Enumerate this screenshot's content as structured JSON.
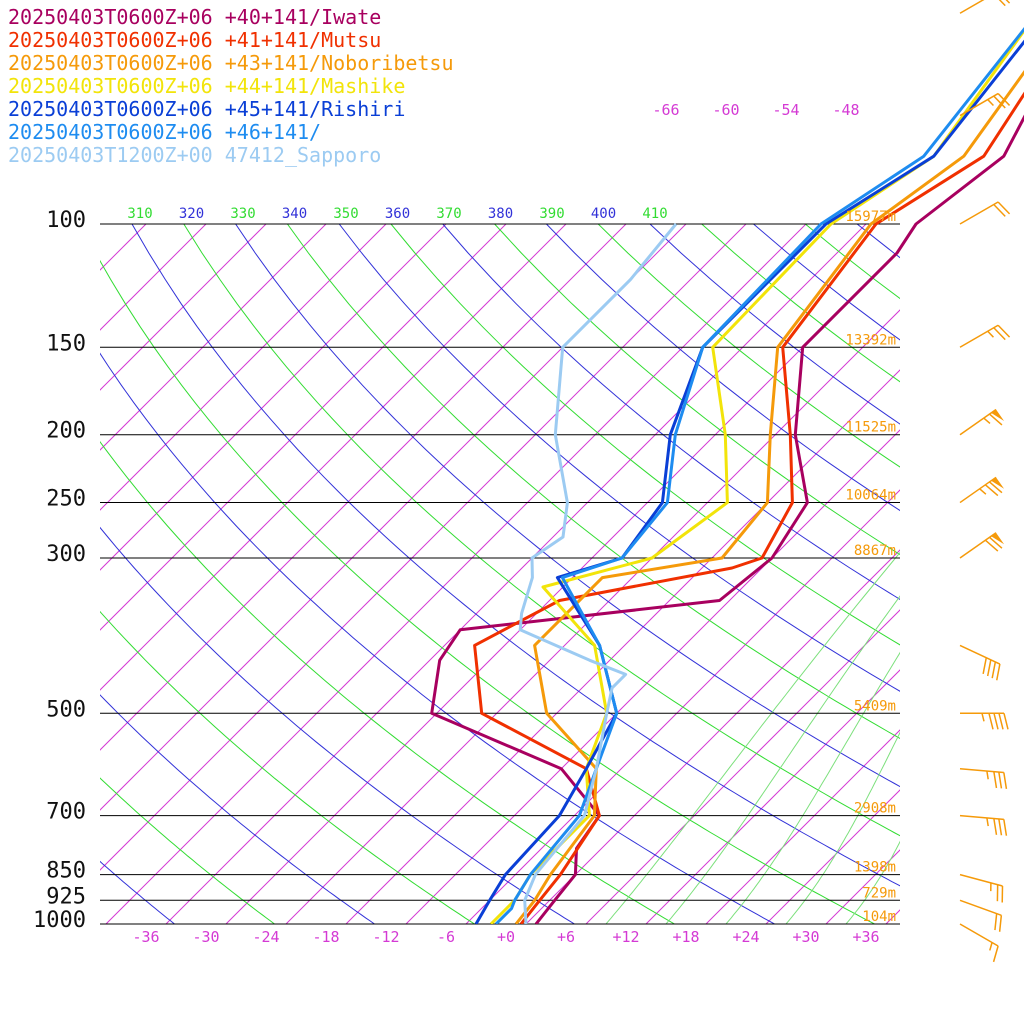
{
  "legend": [
    {
      "label": "20250403T0600Z+06 +40+141/Iwate",
      "color": "#a8005f"
    },
    {
      "label": "20250403T0600Z+06 +41+141/Mutsu",
      "color": "#f03000"
    },
    {
      "label": "20250403T0600Z+06 +43+141/Noboribetsu",
      "color": "#f59a0a"
    },
    {
      "label": "20250403T0600Z+06 +44+141/Mashike",
      "color": "#f2e40a"
    },
    {
      "label": "20250403T0600Z+06 +45+141/Rishiri",
      "color": "#0a3fd6"
    },
    {
      "label": "20250403T0600Z+06 +46+141/",
      "color": "#1e8cf0"
    },
    {
      "label": "20250403T1200Z+00 47412_Sapporo",
      "color": "#9ccbf2"
    }
  ],
  "chart_data": {
    "type": "line",
    "title": "",
    "y_axis": {
      "quantity": "pressure",
      "scale": "log",
      "range": [
        1000,
        100
      ],
      "ticks": [
        100,
        150,
        200,
        250,
        300,
        500,
        700,
        850,
        925,
        1000
      ]
    },
    "x_axis": {
      "quantity": "temperature",
      "range": [
        -40,
        40
      ],
      "ticks": [
        "-36",
        "-30",
        "-24",
        "-18",
        "-12",
        "-6",
        "+0",
        "+6",
        "+12",
        "+18",
        "+24",
        "+30",
        "+36"
      ],
      "skewed": true
    },
    "heights": [
      {
        "p": 100,
        "label": "15977m"
      },
      {
        "p": 150,
        "label": "13392m"
      },
      {
        "p": 200,
        "label": "11525m"
      },
      {
        "p": 250,
        "label": "10064m"
      },
      {
        "p": 300,
        "label": "8867m"
      },
      {
        "p": 500,
        "label": "5409m"
      },
      {
        "p": 700,
        "label": "2908m"
      },
      {
        "p": 850,
        "label": "1398m"
      },
      {
        "p": 925,
        "label": "729m"
      },
      {
        "p": 1000,
        "label": "104m"
      }
    ],
    "theta_labels": [
      "310",
      "320",
      "330",
      "340",
      "350",
      "360",
      "370",
      "380",
      "390",
      "400",
      "410"
    ],
    "isotherm_top_labels": [
      "-66",
      "-60",
      "-54",
      "-48"
    ],
    "series": [
      {
        "name": "20250403T0600Z+06 +40+141/Iwate",
        "color": "#a8005f",
        "points": [
          [
            1000,
            3.0
          ],
          [
            925,
            2.5
          ],
          [
            850,
            2.0
          ],
          [
            780,
            -0.5
          ],
          [
            700,
            -1.5
          ],
          [
            600,
            -10
          ],
          [
            500,
            -28.5
          ],
          [
            420,
            -33
          ],
          [
            380,
            -34
          ],
          [
            345,
            -11
          ],
          [
            300,
            -10
          ],
          [
            250,
            -12
          ],
          [
            200,
            -20
          ],
          [
            150,
            -28
          ],
          [
            110,
            -28
          ],
          [
            100,
            -29
          ],
          [
            80,
            -27
          ],
          [
            65,
            -30
          ],
          [
            50,
            -32
          ]
        ]
      },
      {
        "name": "20250403T0600Z+06 +41+141/Mutsu",
        "color": "#f03000",
        "points": [
          [
            1000,
            1.5
          ],
          [
            925,
            1.0
          ],
          [
            850,
            0.5
          ],
          [
            700,
            -1.5
          ],
          [
            600,
            -7.5
          ],
          [
            500,
            -23.5
          ],
          [
            400,
            -31
          ],
          [
            345,
            -27
          ],
          [
            310,
            -13
          ],
          [
            300,
            -11
          ],
          [
            250,
            -13.5
          ],
          [
            200,
            -20.5
          ],
          [
            150,
            -30
          ],
          [
            100,
            -33
          ],
          [
            80,
            -29
          ],
          [
            50,
            -34
          ]
        ]
      },
      {
        "name": "20250403T0600Z+06 +43+141/Noboribetsu",
        "color": "#f59a0a",
        "points": [
          [
            1000,
            1.0
          ],
          [
            925,
            0.5
          ],
          [
            850,
            -0.5
          ],
          [
            700,
            -2.0
          ],
          [
            600,
            -6.5
          ],
          [
            500,
            -17
          ],
          [
            400,
            -25
          ],
          [
            320,
            -25
          ],
          [
            300,
            -15
          ],
          [
            250,
            -16
          ],
          [
            200,
            -22.5
          ],
          [
            150,
            -30.5
          ],
          [
            100,
            -33.5
          ],
          [
            80,
            -31
          ],
          [
            50,
            -35
          ]
        ]
      },
      {
        "name": "20250403T0600Z+06 +44+141/Mashike",
        "color": "#f2e40a",
        "points": [
          [
            1000,
            -1.5
          ],
          [
            925,
            -1.5
          ],
          [
            850,
            -2.5
          ],
          [
            700,
            -2.5
          ],
          [
            600,
            -7.5
          ],
          [
            500,
            -11
          ],
          [
            400,
            -19
          ],
          [
            330,
            -30
          ],
          [
            300,
            -22
          ],
          [
            250,
            -20
          ],
          [
            200,
            -27
          ],
          [
            150,
            -37
          ],
          [
            100,
            -37.5
          ],
          [
            80,
            -34
          ],
          [
            50,
            -38
          ]
        ]
      },
      {
        "name": "20250403T0600Z+06 +45+141/Rishiri",
        "color": "#0a3fd6",
        "points": [
          [
            1000,
            -3.0
          ],
          [
            925,
            -4.0
          ],
          [
            850,
            -5.0
          ],
          [
            700,
            -5.5
          ],
          [
            600,
            -7.5
          ],
          [
            500,
            -10
          ],
          [
            400,
            -18.5
          ],
          [
            320,
            -29.5
          ],
          [
            300,
            -25
          ],
          [
            250,
            -26.5
          ],
          [
            200,
            -32.5
          ],
          [
            150,
            -38
          ],
          [
            100,
            -38
          ],
          [
            80,
            -34
          ],
          [
            50,
            -37
          ]
        ]
      },
      {
        "name": "20250403T0600Z+06 +46+141/",
        "color": "#1e8cf0",
        "points": [
          [
            1000,
            -1.0
          ],
          [
            950,
            -1.0
          ],
          [
            925,
            -1.5
          ],
          [
            850,
            -2.5
          ],
          [
            700,
            -3.5
          ],
          [
            600,
            -6.5
          ],
          [
            500,
            -10
          ],
          [
            400,
            -18.5
          ],
          [
            320,
            -29
          ],
          [
            300,
            -25
          ],
          [
            250,
            -26
          ],
          [
            200,
            -32
          ],
          [
            150,
            -38
          ],
          [
            100,
            -38.5
          ],
          [
            80,
            -35
          ],
          [
            50,
            -38
          ]
        ]
      },
      {
        "name": "20250403T1200Z+00 47412_Sapporo",
        "color": "#9ccbf2",
        "points": [
          [
            1000,
            2.0
          ],
          [
            925,
            -0.5
          ],
          [
            850,
            -2.0
          ],
          [
            700,
            -3.0
          ],
          [
            600,
            -6.5
          ],
          [
            500,
            -11
          ],
          [
            460,
            -13
          ],
          [
            440,
            -13
          ],
          [
            420,
            -18
          ],
          [
            380,
            -28
          ],
          [
            360,
            -29.5
          ],
          [
            320,
            -32
          ],
          [
            300,
            -34
          ],
          [
            280,
            -33
          ],
          [
            250,
            -36
          ],
          [
            200,
            -44
          ],
          [
            150,
            -52
          ],
          [
            120,
            -52
          ],
          [
            100,
            -53
          ]
        ]
      }
    ],
    "wind_barbs": [
      {
        "p": 1000,
        "speed_kt": 15,
        "dir_deg": 300
      },
      {
        "p": 925,
        "speed_kt": 20,
        "dir_deg": 290
      },
      {
        "p": 850,
        "speed_kt": 25,
        "dir_deg": 285
      },
      {
        "p": 700,
        "speed_kt": 35,
        "dir_deg": 275
      },
      {
        "p": 600,
        "speed_kt": 35,
        "dir_deg": 275
      },
      {
        "p": 500,
        "speed_kt": 45,
        "dir_deg": 270
      },
      {
        "p": 400,
        "speed_kt": 40,
        "dir_deg": 295
      },
      {
        "p": 300,
        "speed_kt": 70,
        "dir_deg": 235
      },
      {
        "p": 250,
        "speed_kt": 75,
        "dir_deg": 235
      },
      {
        "p": 200,
        "speed_kt": 65,
        "dir_deg": 235
      },
      {
        "p": 150,
        "speed_kt": 25,
        "dir_deg": 240
      },
      {
        "p": 100,
        "speed_kt": 20,
        "dir_deg": 240
      },
      {
        "p": 70,
        "speed_kt": 25,
        "dir_deg": 240
      },
      {
        "p": 50,
        "speed_kt": 20,
        "dir_deg": 240
      }
    ]
  }
}
